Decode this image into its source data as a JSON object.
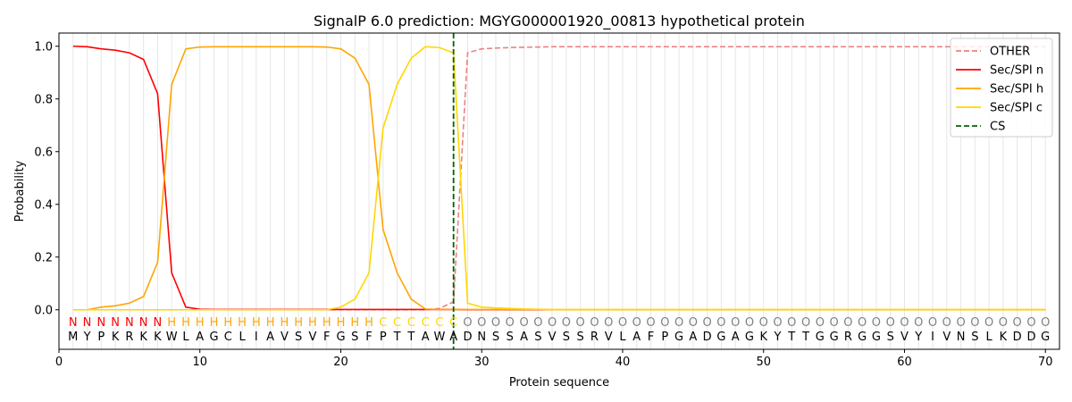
{
  "chart_data": {
    "type": "line",
    "title": "SignalP 6.0 prediction: MGYG000001920_00813 hypothetical protein",
    "xlabel": "Protein sequence",
    "ylabel": "Probability",
    "xlim": [
      0,
      71
    ],
    "ylim": [
      -0.15,
      1.05
    ],
    "xticks": [
      "0",
      "10",
      "20",
      "30",
      "40",
      "50",
      "60",
      "70"
    ],
    "yticks": [
      "0.0",
      "0.2",
      "0.4",
      "0.6",
      "0.8",
      "1.0"
    ],
    "grid": "vertical lines at each residue",
    "legend_position": "top-right",
    "sequence": [
      "M",
      "Y",
      "P",
      "K",
      "R",
      "K",
      "K",
      "W",
      "L",
      "A",
      "G",
      "C",
      "L",
      "I",
      "A",
      "V",
      "S",
      "V",
      "F",
      "G",
      "S",
      "F",
      "P",
      "T",
      "T",
      "A",
      "W",
      "A",
      "D",
      "N",
      "S",
      "S",
      "A",
      "S",
      "V",
      "S",
      "S",
      "R",
      "V",
      "L",
      "A",
      "F",
      "P",
      "G",
      "A",
      "D",
      "G",
      "A",
      "G",
      "K",
      "Y",
      "T",
      "T",
      "G",
      "G",
      "R",
      "G",
      "G",
      "S",
      "V",
      "Y",
      "I",
      "V",
      "N",
      "S",
      "L",
      "K",
      "D",
      "D",
      "G"
    ],
    "annotation": [
      "N",
      "N",
      "N",
      "N",
      "N",
      "N",
      "N",
      "H",
      "H",
      "H",
      "H",
      "H",
      "H",
      "H",
      "H",
      "H",
      "H",
      "H",
      "H",
      "H",
      "H",
      "H",
      "C",
      "C",
      "C",
      "C",
      "C",
      "C",
      "O",
      "O",
      "O",
      "O",
      "O",
      "O",
      "O",
      "O",
      "O",
      "O",
      "O",
      "O",
      "O",
      "O",
      "O",
      "O",
      "O",
      "O",
      "O",
      "O",
      "O",
      "O",
      "O",
      "O",
      "O",
      "O",
      "O",
      "O",
      "O",
      "O",
      "O",
      "O",
      "O",
      "O",
      "O",
      "O",
      "O",
      "O",
      "O",
      "O",
      "O",
      "O"
    ],
    "annotation_colors": {
      "N": "#ff0000",
      "H": "#ffa500",
      "C": "#ffd700",
      "O": "#808080"
    },
    "cleavage_site": 28,
    "series": [
      {
        "name": "OTHER",
        "color": "#f08080",
        "dash": true,
        "values": [
          0,
          0,
          0,
          0,
          0,
          0,
          0,
          0,
          0,
          0,
          0,
          0,
          0,
          0,
          0,
          0,
          0,
          0,
          0,
          0,
          0,
          0,
          0,
          0,
          0,
          0,
          0.005,
          0.03,
          0.975,
          0.99,
          0.993,
          0.995,
          0.996,
          0.997,
          0.998,
          0.998,
          0.998,
          0.998,
          0.998,
          0.998,
          0.998,
          0.998,
          0.998,
          0.998,
          0.998,
          0.998,
          0.998,
          0.998,
          0.998,
          0.998,
          0.998,
          0.998,
          0.998,
          0.998,
          0.998,
          0.998,
          0.998,
          0.998,
          0.998,
          0.998,
          0.998,
          0.998,
          0.998,
          0.998,
          0.998,
          0.998,
          0.998,
          0.998,
          0.998,
          0.998
        ]
      },
      {
        "name": "Sec/SPI n",
        "color": "#ff0000",
        "dash": false,
        "values": [
          1.0,
          0.998,
          0.99,
          0.985,
          0.975,
          0.95,
          0.82,
          0.14,
          0.01,
          0.002,
          0.001,
          0.001,
          0.001,
          0.001,
          0.001,
          0.001,
          0.001,
          0.001,
          0.001,
          0.001,
          0.001,
          0.001,
          0.001,
          0.001,
          0.001,
          0.001,
          0.001,
          0.001,
          0,
          0,
          0,
          0,
          0,
          0,
          0,
          0,
          0,
          0,
          0,
          0,
          0,
          0,
          0,
          0,
          0,
          0,
          0,
          0,
          0,
          0,
          0,
          0,
          0,
          0,
          0,
          0,
          0,
          0,
          0,
          0,
          0,
          0,
          0,
          0,
          0,
          0,
          0,
          0,
          0,
          0
        ]
      },
      {
        "name": "Sec/SPI h",
        "color": "#ffa500",
        "dash": false,
        "values": [
          0,
          0,
          0.01,
          0.015,
          0.025,
          0.05,
          0.18,
          0.855,
          0.99,
          0.997,
          0.998,
          0.998,
          0.998,
          0.998,
          0.998,
          0.998,
          0.998,
          0.998,
          0.997,
          0.99,
          0.955,
          0.855,
          0.305,
          0.14,
          0.04,
          0.003,
          0.001,
          0.001,
          0.001,
          0.001,
          0.001,
          0.001,
          0.001,
          0.001,
          0,
          0,
          0,
          0,
          0,
          0,
          0,
          0,
          0,
          0,
          0,
          0,
          0,
          0,
          0,
          0,
          0,
          0,
          0,
          0,
          0,
          0,
          0,
          0,
          0,
          0,
          0,
          0,
          0,
          0,
          0,
          0,
          0,
          0,
          0,
          0
        ]
      },
      {
        "name": "Sec/SPI c",
        "color": "#ffd700",
        "dash": false,
        "values": [
          0,
          0,
          0,
          0,
          0,
          0,
          0,
          0,
          0,
          0,
          0,
          0,
          0,
          0,
          0,
          0,
          0,
          0,
          0,
          0.01,
          0.04,
          0.14,
          0.69,
          0.855,
          0.955,
          0.998,
          0.995,
          0.975,
          0.025,
          0.01,
          0.007,
          0.005,
          0.003,
          0.002,
          0.001,
          0.001,
          0.001,
          0.001,
          0.001,
          0.001,
          0.001,
          0.001,
          0.001,
          0.001,
          0.001,
          0.001,
          0.001,
          0.001,
          0.001,
          0.001,
          0.001,
          0.001,
          0.001,
          0.001,
          0.001,
          0.001,
          0.001,
          0.001,
          0.001,
          0.001,
          0.001,
          0.001,
          0.001,
          0.001,
          0.001,
          0.001,
          0.001,
          0.001,
          0.001,
          0.001
        ]
      }
    ],
    "legend": [
      {
        "label": "OTHER",
        "color": "#f08080",
        "dash": true
      },
      {
        "label": "Sec/SPI n",
        "color": "#ff0000",
        "dash": false
      },
      {
        "label": "Sec/SPI h",
        "color": "#ffa500",
        "dash": false
      },
      {
        "label": "Sec/SPI c",
        "color": "#ffd700",
        "dash": false
      },
      {
        "label": "CS",
        "color": "#006400",
        "dash": true
      }
    ]
  }
}
